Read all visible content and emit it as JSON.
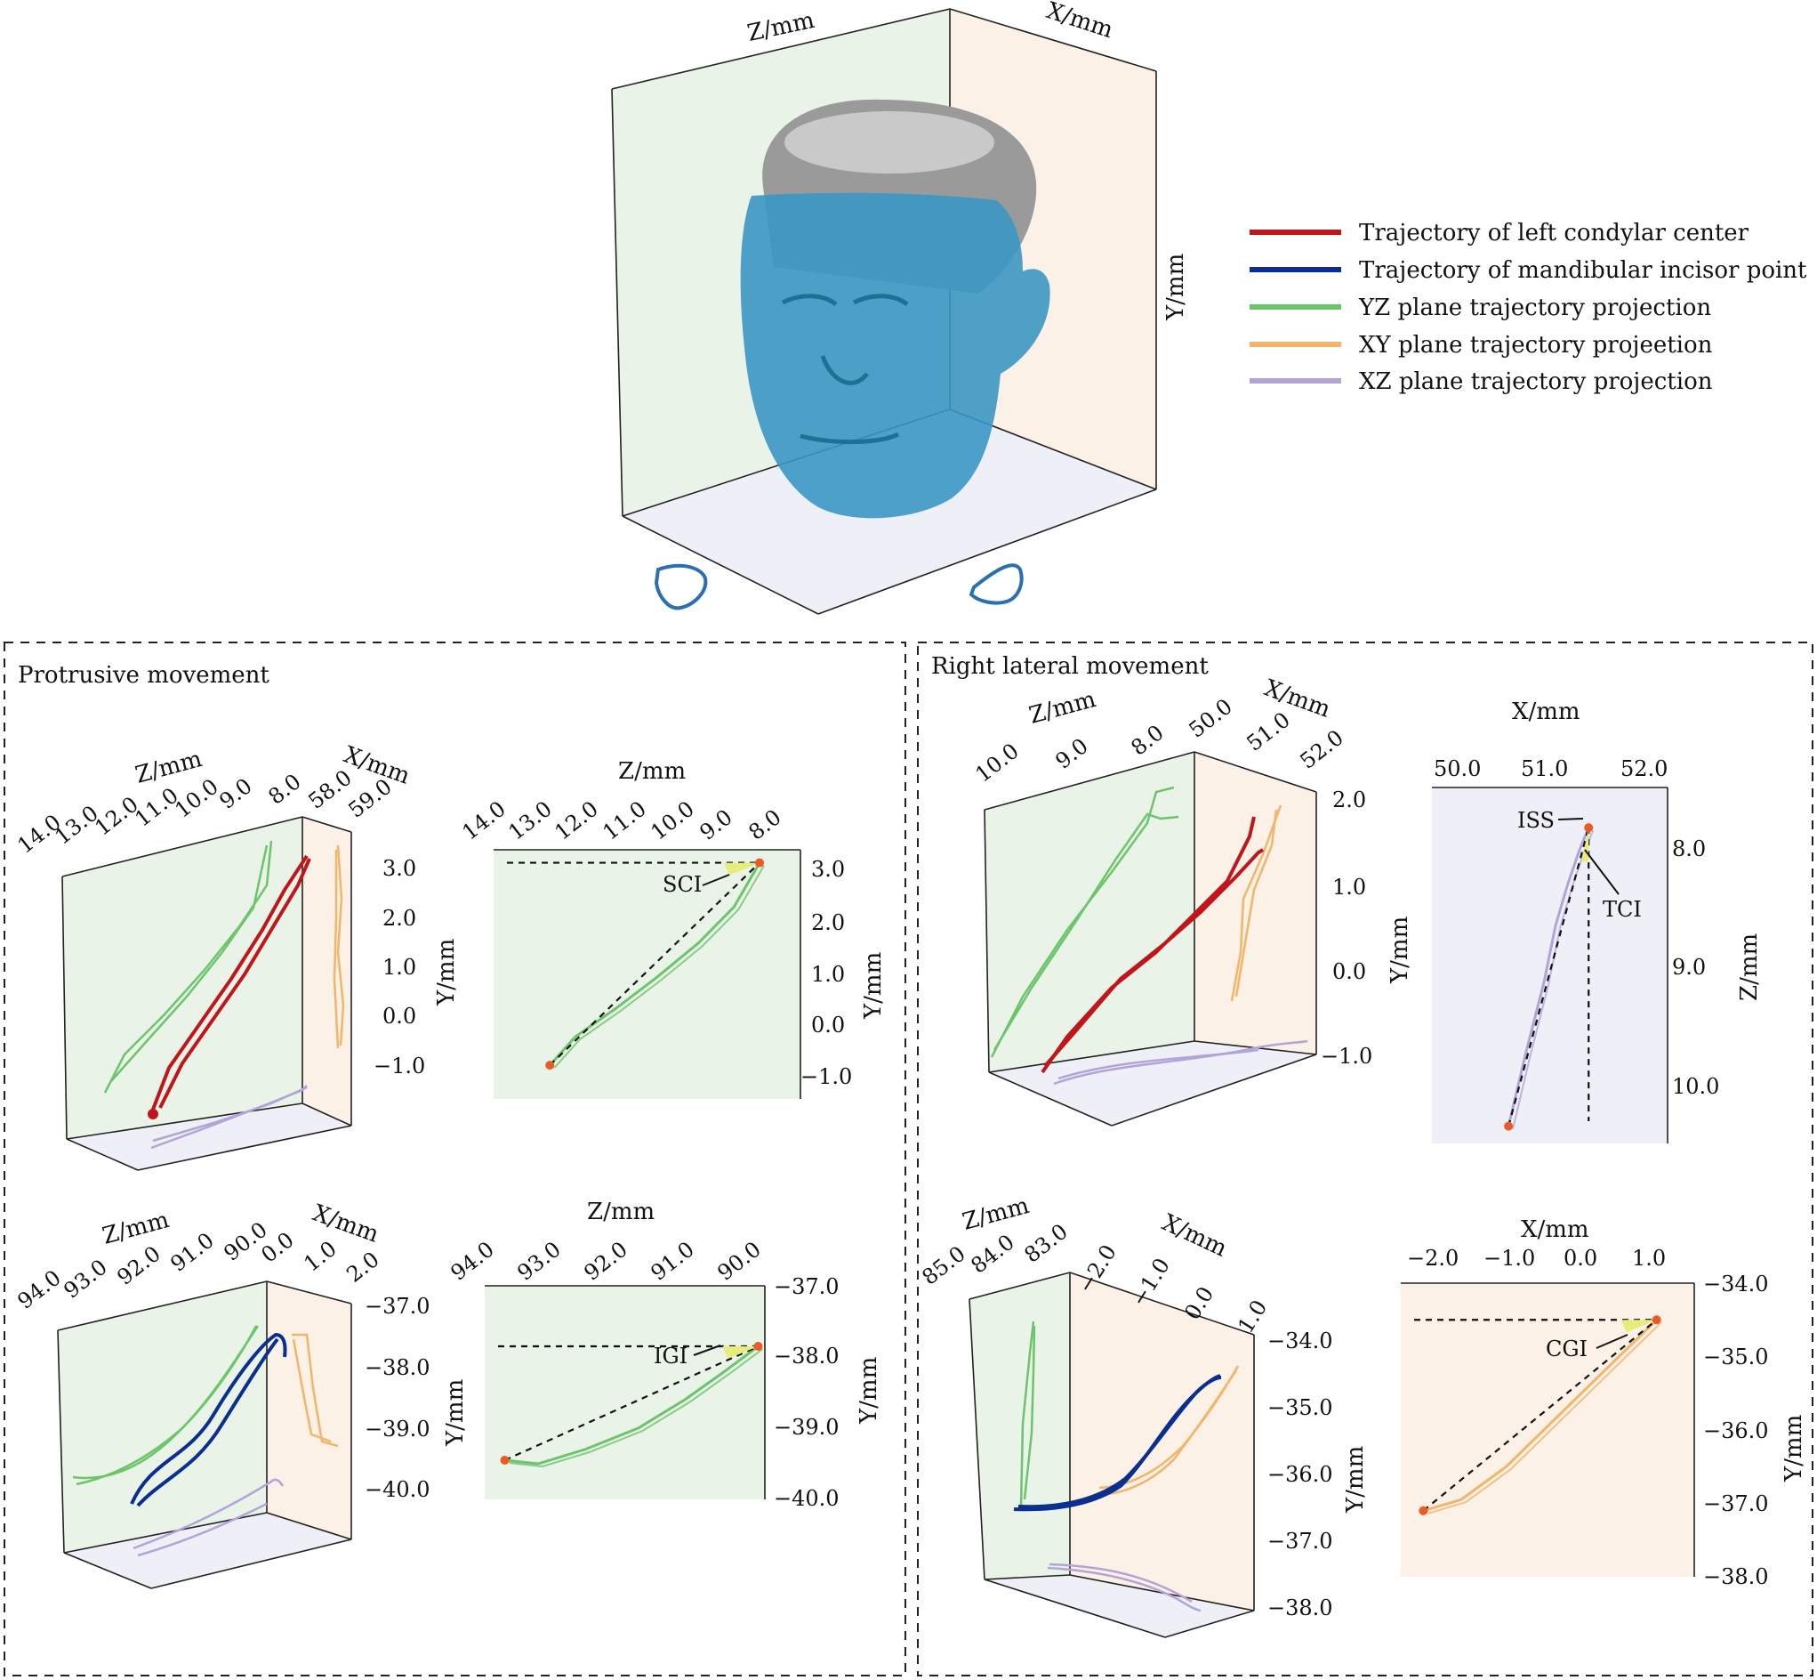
{
  "legend": {
    "items": [
      {
        "label": "Trajectory of left condylar center",
        "color": "#c0161b"
      },
      {
        "label": "Trajectory of mandibular incisor point",
        "color": "#0b2f8f"
      },
      {
        "label": "YZ plane trajectory projection",
        "color": "#6cc46b"
      },
      {
        "label": "XY plane trajectory projeetion",
        "color": "#f2b56b"
      },
      {
        "label": "XZ plane trajectory projection",
        "color": "#b3a4d8"
      }
    ]
  },
  "head_box": {
    "z_label": "Z/mm",
    "x_label": "X/mm",
    "y_label": "Y/mm",
    "yz_plane_color": "#eaf3e7",
    "xy_plane_color": "#fbf1e6",
    "xz_plane_color": "#efeff8",
    "face_color": "#3b97c3",
    "skull_color": "#9a9a9a",
    "marker_color": "#2a6fb0"
  },
  "panels": {
    "protrusive": {
      "title": "Protrusive movement"
    },
    "right_lateral": {
      "title": "Right lateral movement"
    }
  },
  "point_color": "#ee5a24",
  "highlight_color": "#e8ec7a",
  "chart_data": [
    {
      "id": "protrusive_condyle_3d",
      "type": "line",
      "z_label": "Z/mm",
      "x_label": "X/mm",
      "y_label": "Y/mm",
      "z_ticks": [
        "14.0",
        "13.0",
        "12.0",
        "11.0",
        "10.0",
        "9.0",
        "8.0"
      ],
      "x_ticks": [
        "58.0",
        "59.0"
      ],
      "y_ticks": [
        "3.0",
        "2.0",
        "1.0",
        "0.0",
        "−1.0"
      ],
      "ylim": [
        -1.0,
        3.0
      ],
      "series": [
        {
          "role": "trajectory",
          "color": "#c0161b",
          "y": [
            -1.85,
            -1.2,
            -0.5,
            0.2,
            0.9,
            1.6,
            2.3,
            3.0,
            3.4
          ]
        },
        {
          "role": "yz-projection",
          "color": "#6cc46b"
        },
        {
          "role": "xy-projection",
          "color": "#f2b56b"
        },
        {
          "role": "xz-projection",
          "color": "#b3a4d8"
        }
      ]
    },
    {
      "id": "protrusive_condyle_yz",
      "type": "line",
      "x_label": "Z/mm",
      "y_label": "Y/mm",
      "x_ticks": [
        "14.0",
        "13.0",
        "12.0",
        "11.0",
        "10.0",
        "9.0",
        "8.0"
      ],
      "y_ticks": [
        "3.0",
        "2.0",
        "1.0",
        "0.0",
        "−1.0"
      ],
      "xlim": [
        14.0,
        8.0
      ],
      "ylim": [
        -1.4,
        3.4
      ],
      "x": [
        12.9,
        12.4,
        11.6,
        10.8,
        10.0,
        9.3,
        8.8
      ],
      "y": [
        -0.75,
        -0.2,
        0.35,
        0.95,
        1.6,
        2.3,
        3.15
      ],
      "annotation": "SCI",
      "start_point": [
        12.9,
        -0.75
      ],
      "end_point": [
        8.8,
        3.15
      ]
    },
    {
      "id": "protrusive_incisor_3d",
      "type": "line",
      "z_label": "Z/mm",
      "x_label": "X/mm",
      "y_label": "Y/mm",
      "z_ticks": [
        "94.0",
        "93.0",
        "92.0",
        "91.0",
        "90.0"
      ],
      "x_ticks": [
        "0.0",
        "1.0",
        "2.0"
      ],
      "y_ticks": [
        "−37.0",
        "−38.0",
        "−39.0",
        "−40.0"
      ],
      "ylim": [
        -40.0,
        -37.0
      ],
      "series": [
        {
          "role": "trajectory",
          "color": "#0b2f8f"
        },
        {
          "role": "yz-projection",
          "color": "#6cc46b"
        },
        {
          "role": "xy-projection",
          "color": "#f2b56b"
        },
        {
          "role": "xz-projection",
          "color": "#b3a4d8"
        }
      ]
    },
    {
      "id": "protrusive_incisor_yz",
      "type": "line",
      "x_label": "Z/mm",
      "y_label": "Y/mm",
      "x_ticks": [
        "94.0",
        "93.0",
        "92.0",
        "91.0",
        "90.0"
      ],
      "y_ticks": [
        "−37.0",
        "−38.0",
        "−39.0",
        "−40.0"
      ],
      "xlim": [
        94.0,
        89.8
      ],
      "ylim": [
        -40.0,
        -37.0
      ],
      "x": [
        93.7,
        93.2,
        92.5,
        91.7,
        91.0,
        90.4,
        89.9
      ],
      "y": [
        -39.45,
        -39.5,
        -39.3,
        -39.0,
        -38.6,
        -38.2,
        -37.85
      ],
      "annotation": "IGI",
      "start_point": [
        93.7,
        -39.45
      ],
      "end_point": [
        89.9,
        -37.85
      ]
    },
    {
      "id": "right_lateral_condyle_3d",
      "type": "line",
      "z_label": "Z/mm",
      "x_label": "X/mm",
      "y_label": "Y/mm",
      "z_ticks": [
        "10.0",
        "9.0",
        "8.0"
      ],
      "x_ticks": [
        "50.0",
        "51.0",
        "52.0"
      ],
      "y_ticks": [
        "2.0",
        "1.0",
        "0.0",
        "−1.0"
      ],
      "ylim": [
        -1.0,
        2.0
      ],
      "series": [
        {
          "role": "trajectory",
          "color": "#c0161b"
        },
        {
          "role": "yz-projection",
          "color": "#6cc46b"
        },
        {
          "role": "xy-projection",
          "color": "#f2b56b"
        },
        {
          "role": "xz-projection",
          "color": "#b3a4d8"
        }
      ]
    },
    {
      "id": "right_lateral_condyle_xz",
      "type": "line",
      "x_label": "X/mm",
      "y_label": "Z/mm",
      "x_ticks": [
        "50.0",
        "51.0",
        "52.0"
      ],
      "y_ticks": [
        "8.0",
        "9.0",
        "10.0"
      ],
      "xlim": [
        50.0,
        52.0
      ],
      "ylim": [
        7.4,
        10.5
      ],
      "x": [
        50.65,
        50.8,
        50.95,
        51.05,
        51.15,
        51.25,
        51.33
      ],
      "z": [
        10.35,
        9.7,
        9.1,
        8.6,
        8.25,
        7.95,
        7.75
      ],
      "annotations": [
        "ISS",
        "TCI"
      ],
      "start_point": [
        50.65,
        10.35
      ],
      "end_point": [
        51.33,
        7.75
      ]
    },
    {
      "id": "right_lateral_incisor_3d",
      "type": "line",
      "z_label": "Z/mm",
      "x_label": "X/mm",
      "y_label": "Y/mm",
      "z_ticks": [
        "85.0",
        "84.0",
        "83.0"
      ],
      "x_ticks": [
        "−2.0",
        "−1.0",
        "0.0",
        "1.0"
      ],
      "y_ticks": [
        "−34.0",
        "−35.0",
        "−36.0",
        "−37.0",
        "−38.0"
      ],
      "ylim": [
        -38.0,
        -34.0
      ],
      "series": [
        {
          "role": "trajectory",
          "color": "#0b2f8f"
        },
        {
          "role": "yz-projection",
          "color": "#6cc46b"
        },
        {
          "role": "xy-projection",
          "color": "#f2b56b"
        },
        {
          "role": "xz-projection",
          "color": "#b3a4d8"
        }
      ]
    },
    {
      "id": "right_lateral_incisor_xy",
      "type": "line",
      "x_label": "X/mm",
      "y_label": "Y/mm",
      "x_ticks": [
        "−2.0",
        "−1.0",
        "0.0",
        "1.0"
      ],
      "y_ticks": [
        "−34.0",
        "−35.0",
        "−36.0",
        "−37.0",
        "−38.0"
      ],
      "xlim": [
        -2.4,
        1.5
      ],
      "ylim": [
        -38.0,
        -34.0
      ],
      "x": [
        -2.1,
        -1.6,
        -1.0,
        -0.4,
        0.2,
        0.7,
        1.0
      ],
      "y": [
        -37.1,
        -36.95,
        -36.5,
        -35.9,
        -35.3,
        -34.8,
        -34.5
      ],
      "annotation": "CGI",
      "start_point": [
        -2.1,
        -37.1
      ],
      "end_point": [
        1.0,
        -34.5
      ]
    }
  ]
}
